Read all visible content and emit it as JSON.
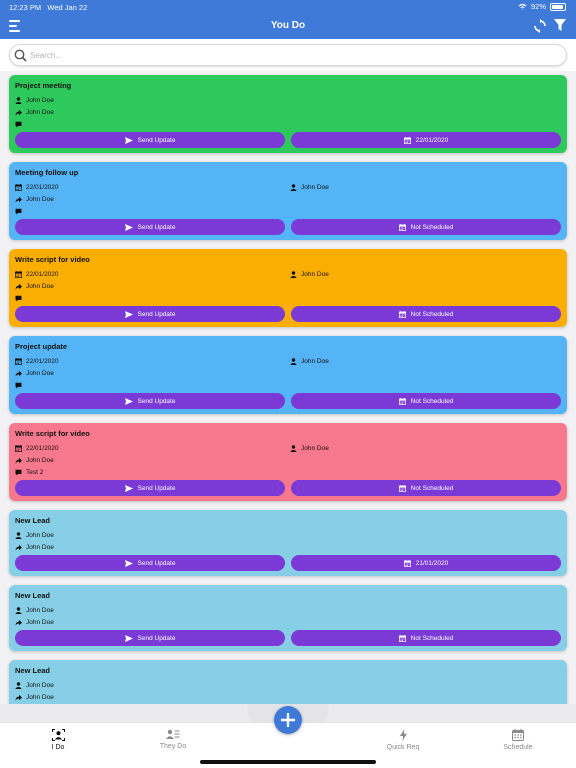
{
  "status": {
    "time": "12:23 PM",
    "date": "Wed Jan 22",
    "battery": "92%",
    "battery_level": 0.92
  },
  "nav": {
    "title": "You Do"
  },
  "search": {
    "placeholder": "Search..."
  },
  "colors": {
    "green": "#2ec95c",
    "blue": "#55b4f5",
    "orange": "#fbae02",
    "pink": "#f8788d",
    "lightblue": "#87cfe6",
    "button": "#7b3ad6",
    "header": "#3f7ad8"
  },
  "cards": [
    {
      "title": "Project meeting",
      "color": "#2ec95c",
      "assignee": "John Doe",
      "forwarded": "John Doe",
      "comment": "",
      "schedule": "22/01/2020",
      "send": "Send Update"
    },
    {
      "title": "Meeting follow up",
      "color": "#55b4f5",
      "date": "22/01/2020",
      "assignee": "John Doe",
      "forwarded": "John Doe",
      "comment": "",
      "schedule": "Not Scheduled",
      "send": "Send Update"
    },
    {
      "title": "Write script for video",
      "color": "#fbae02",
      "date": "22/01/2020",
      "assignee": "John Doe",
      "forwarded": "John Doe",
      "comment": "",
      "schedule": "Not Scheduled",
      "send": "Send Update"
    },
    {
      "title": "Project update",
      "color": "#55b4f5",
      "date": "22/01/2020",
      "assignee": "John Doe",
      "forwarded": "John Doe",
      "comment": "",
      "schedule": "Not Scheduled",
      "send": "Send Update"
    },
    {
      "title": "Write script for video",
      "color": "#f8788d",
      "date": "22/01/2020",
      "assignee": "John Doe",
      "forwarded": "John Doe",
      "comment": "Test 2",
      "schedule": "Not Scheduled",
      "send": "Send Update"
    },
    {
      "title": "New Lead",
      "color": "#87cfe6",
      "assignee": "John Doe",
      "forwarded": "John Doe",
      "schedule": "21/01/2020",
      "send": "Send Update"
    },
    {
      "title": "New Lead",
      "color": "#87cfe6",
      "assignee": "John Doe",
      "forwarded": "John Doe",
      "schedule": "Not Scheduled",
      "send": "Send Update"
    },
    {
      "title": "New Lead",
      "color": "#87cfe6",
      "assignee": "John Doe",
      "forwarded": "John Doe",
      "schedule": "",
      "send": ""
    }
  ],
  "tabs": [
    {
      "label": "I Do",
      "icon": "person-icon",
      "active": true
    },
    {
      "label": "They Do",
      "icon": "people-icon",
      "active": false
    },
    {
      "label": "Quick Req",
      "icon": "bolt-icon",
      "active": false
    },
    {
      "label": "Schedule",
      "icon": "calendar-icon",
      "active": false
    }
  ]
}
